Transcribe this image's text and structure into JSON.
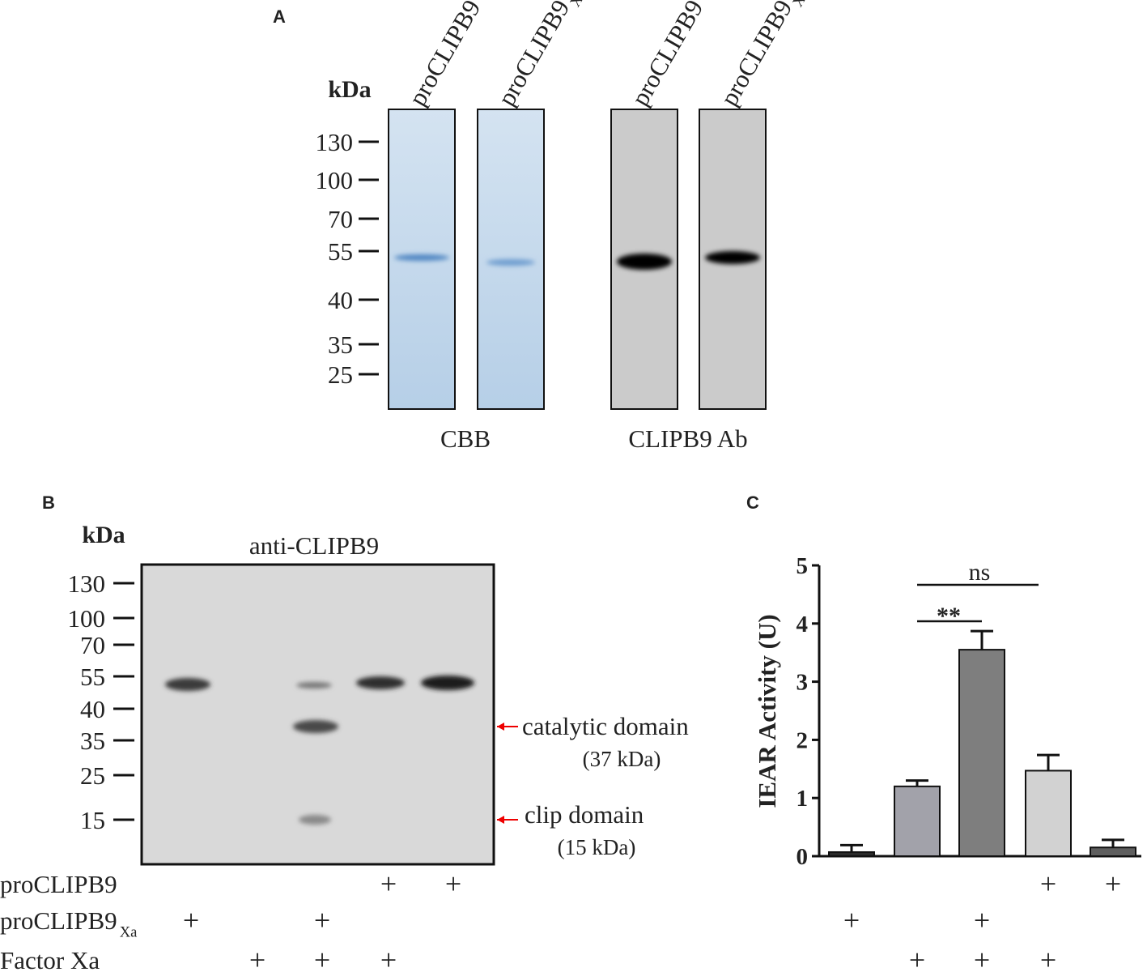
{
  "panel_a": {
    "letter": "A",
    "unit": "kDa",
    "markers": [
      130,
      100,
      70,
      55,
      40,
      35,
      25
    ],
    "lanes": [
      {
        "name": "proCLIPB9"
      },
      {
        "name": "proCLIPB9",
        "sub": "Xa"
      },
      {
        "name": "proCLIPB9"
      },
      {
        "name": "proCLIPB9",
        "sub": "Xa"
      }
    ],
    "groups": [
      "CBB",
      "CLIPB9 Ab"
    ]
  },
  "panel_b": {
    "letter": "B",
    "unit": "kDa",
    "title": "anti-CLIPB9",
    "markers": [
      130,
      100,
      70,
      55,
      40,
      35,
      25,
      15
    ],
    "annotations": [
      {
        "name": "catalytic domain",
        "size": "(37 kDa)"
      },
      {
        "name": "clip domain",
        "size": "(15 kDa)"
      }
    ]
  },
  "rows": [
    {
      "label": "proCLIPB9",
      "b": [
        null,
        null,
        null,
        "+",
        "+"
      ],
      "c": [
        null,
        null,
        null,
        "+",
        "+"
      ]
    },
    {
      "label": "proCLIPB9",
      "sub": "Xa",
      "b": [
        "+",
        null,
        "+",
        null,
        null
      ],
      "c": [
        "+",
        null,
        "+",
        null,
        null
      ]
    },
    {
      "label": "Factor Xa",
      "b": [
        null,
        "+",
        "+",
        "+",
        null
      ],
      "c": [
        null,
        "+",
        "+",
        "+",
        null
      ]
    }
  ],
  "chart_data": {
    "type": "bar",
    "letter": "C",
    "ylabel": "IEAR Activity (U)",
    "values": [
      0.07,
      1.2,
      3.55,
      1.47,
      0.15
    ],
    "errors": [
      0.12,
      0.1,
      0.32,
      0.27,
      0.13
    ],
    "colors": [
      "#2a2a2a",
      "#a2a2aa",
      "#7e7e7e",
      "#d2d2d2",
      "#5e5e5e"
    ],
    "ylim": [
      0,
      5
    ],
    "yticks": [
      0,
      1,
      2,
      3,
      4,
      5
    ],
    "annotations": [
      "ns",
      "**"
    ]
  }
}
